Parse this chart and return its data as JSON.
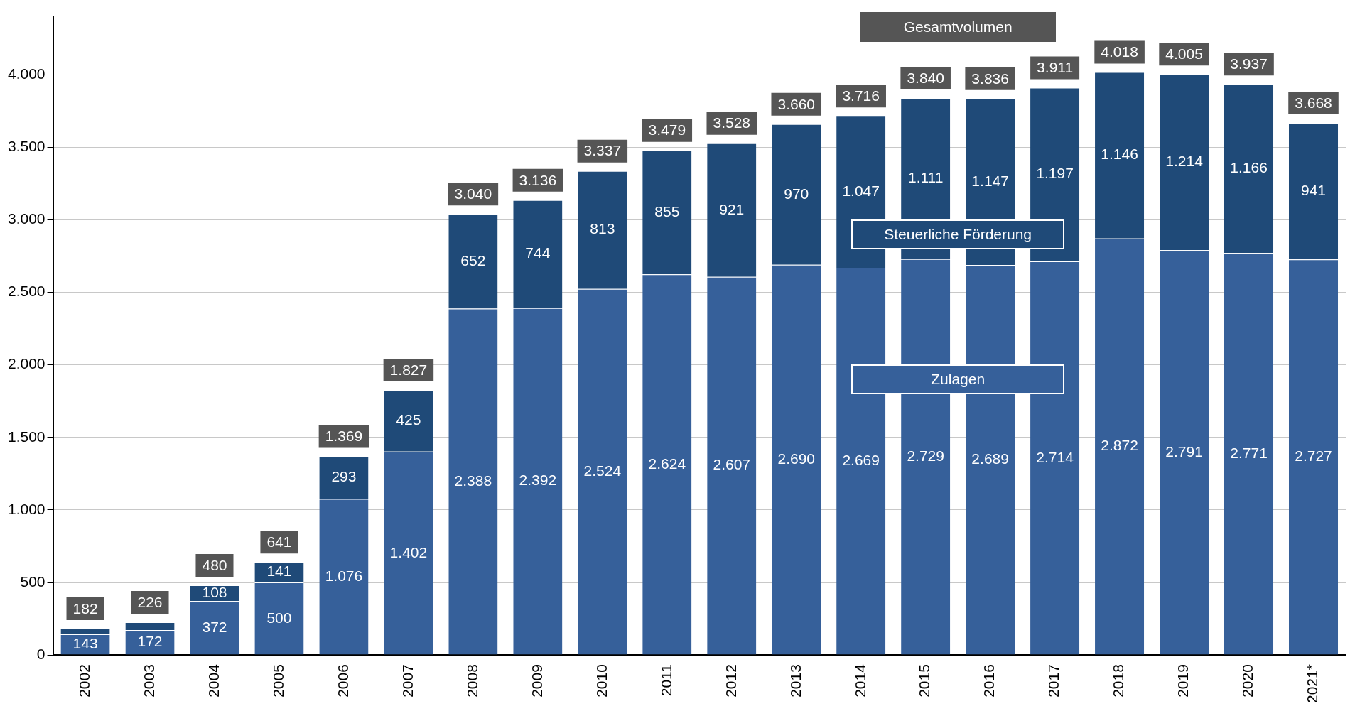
{
  "chart_data": {
    "type": "bar",
    "stacked": true,
    "categories": [
      "2002",
      "2003",
      "2004",
      "2005",
      "2006",
      "2007",
      "2008",
      "2009",
      "2010",
      "2011",
      "2012",
      "2013",
      "2014",
      "2015",
      "2016",
      "2017",
      "2018",
      "2019",
      "2020",
      "2021*"
    ],
    "series": [
      {
        "name": "Zulagen",
        "color": "#36609a",
        "values": [
          143,
          172,
          372,
          500,
          1076,
          1402,
          2388,
          2392,
          2524,
          2624,
          2607,
          2690,
          2669,
          2729,
          2689,
          2714,
          2872,
          2791,
          2771,
          2727
        ],
        "value_labels": [
          "143",
          "172",
          "372",
          "500",
          "1.076",
          "1.402",
          "2.388",
          "2.392",
          "2.524",
          "2.624",
          "2.607",
          "2.690",
          "2.669",
          "2.729",
          "2.689",
          "2.714",
          "2.872",
          "2.791",
          "2.771",
          "2.727"
        ]
      },
      {
        "name": "Steuerliche Förderung",
        "color": "#1f4a78",
        "values": [
          39,
          54,
          108,
          141,
          293,
          425,
          652,
          744,
          813,
          855,
          921,
          970,
          1047,
          1111,
          1147,
          1197,
          1146,
          1214,
          1166,
          941
        ],
        "value_labels": [
          null,
          null,
          "108",
          "141",
          "293",
          "425",
          "652",
          "744",
          "813",
          "855",
          "921",
          "970",
          "1.047",
          "1.111",
          "1.147",
          "1.197",
          "1.146",
          "1.214",
          "1.166",
          "941"
        ]
      }
    ],
    "totals": [
      "182",
      "226",
      "480",
      "641",
      "1.369",
      "1.827",
      "3.040",
      "3.136",
      "3.337",
      "3.479",
      "3.528",
      "3.660",
      "3.716",
      "3.840",
      "3.836",
      "3.911",
      "4.018",
      "4.005",
      "3.937",
      "3.668"
    ],
    "annotations": [
      "Gesamtvolumen"
    ],
    "ylim": [
      0,
      4400
    ],
    "yticks": [
      0,
      {
        "value": 500,
        "label": "500"
      },
      {
        "value": 1000,
        "label": "1.000"
      },
      {
        "value": 1500,
        "label": "1.500"
      },
      {
        "value": 2000,
        "label": "2.000"
      },
      {
        "value": 2500,
        "label": "2.500"
      },
      {
        "value": 3000,
        "label": "3.000"
      },
      {
        "value": 3500,
        "label": "3.500"
      },
      {
        "value": 4000,
        "label": "4.000"
      }
    ],
    "grid": "y",
    "legend": false
  }
}
